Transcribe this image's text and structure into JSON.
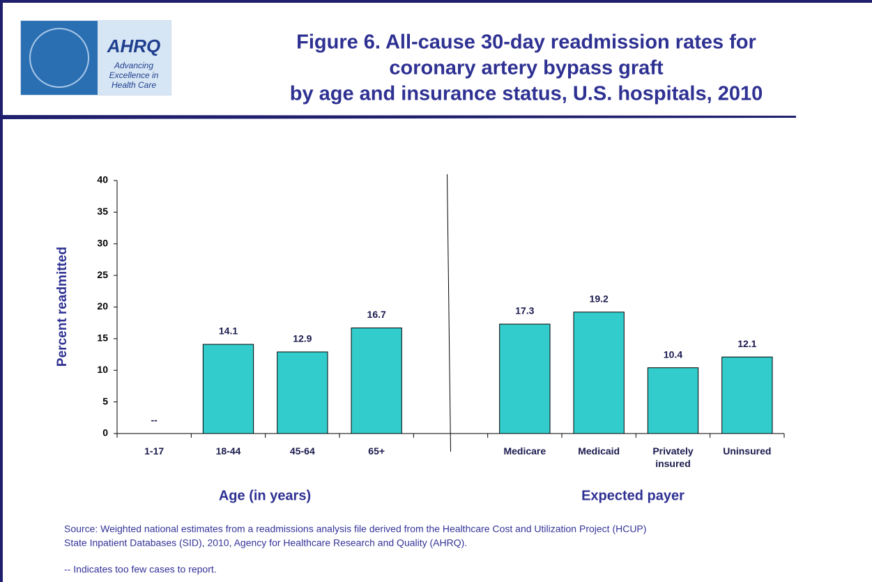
{
  "logo": {
    "name": "AHRQ",
    "tagline": [
      "Advancing",
      "Excellence in",
      "Health Care"
    ]
  },
  "chart_data": {
    "type": "bar",
    "title": [
      "Figure 6. All-cause 30-day readmission rates for",
      "coronary artery bypass graft",
      "by age and insurance status, U.S. hospitals, 2010"
    ],
    "y_label": "Percent readmitted",
    "group_labels": [
      "Age (in years)",
      "Expected payer"
    ],
    "categories": [
      "1-17",
      "18-44",
      "45-64",
      "65+",
      null,
      "Medicare",
      "Medicaid",
      "Privately insured",
      "Uninsured"
    ],
    "values": [
      null,
      14.1,
      12.9,
      16.7,
      null,
      17.3,
      19.2,
      10.4,
      12.1
    ],
    "value_labels": [
      "--",
      "14.1",
      "12.9",
      "16.7",
      null,
      "17.3",
      "19.2",
      "10.4",
      "12.1"
    ],
    "color": "#33cccc",
    "ylim": [
      0,
      40
    ],
    "yticks": [
      0,
      5,
      10,
      15,
      20,
      25,
      30,
      35,
      40
    ],
    "grid": false,
    "source": [
      "Source: Weighted national estimates from a readmissions analysis file derived from the Healthcare Cost and Utilization Project (HCUP)",
      "State Inpatient Databases (SID), 2010, Agency for Healthcare Research and Quality (AHRQ)."
    ],
    "note": "-- Indicates too few cases to report."
  }
}
